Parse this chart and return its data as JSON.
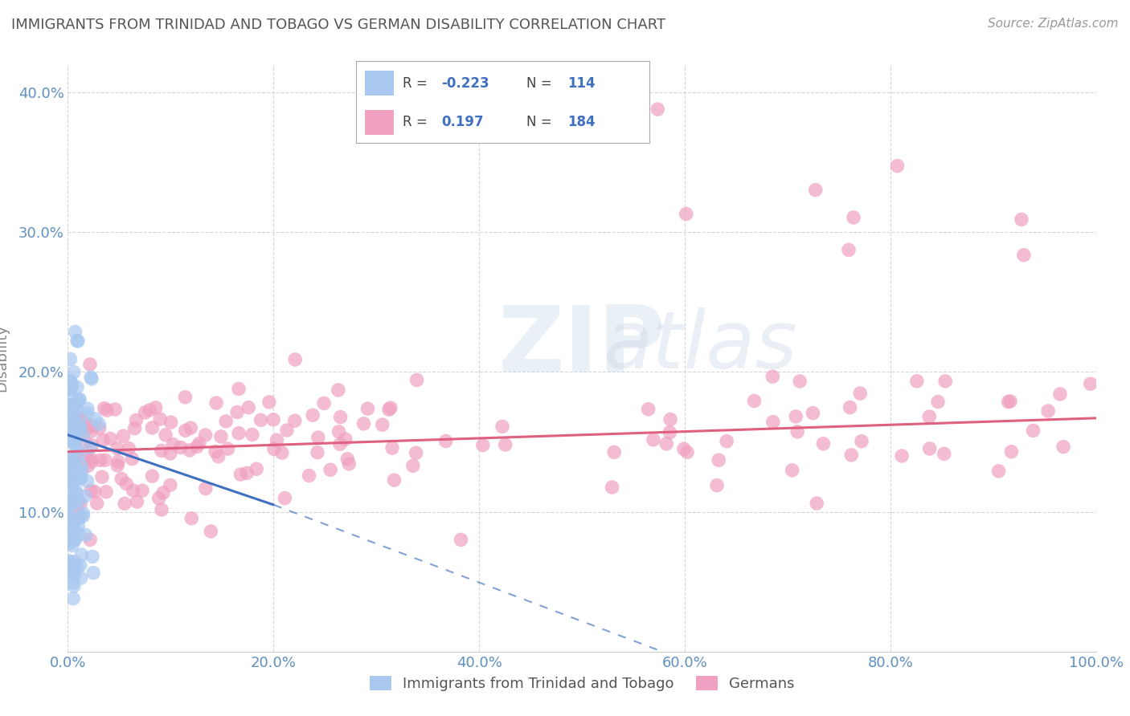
{
  "title": "IMMIGRANTS FROM TRINIDAD AND TOBAGO VS GERMAN DISABILITY CORRELATION CHART",
  "source": "Source: ZipAtlas.com",
  "ylabel": "Disability",
  "xlim": [
    0,
    1.0
  ],
  "ylim": [
    0,
    0.42
  ],
  "xticks": [
    0.0,
    0.2,
    0.4,
    0.6,
    0.8,
    1.0
  ],
  "xtick_labels": [
    "0.0%",
    "20.0%",
    "40.0%",
    "60.0%",
    "80.0%",
    "100.0%"
  ],
  "yticks": [
    0.0,
    0.1,
    0.2,
    0.3,
    0.4
  ],
  "ytick_labels": [
    "",
    "10.0%",
    "20.0%",
    "30.0%",
    "40.0%"
  ],
  "blue_R": -0.223,
  "blue_N": 114,
  "pink_R": 0.197,
  "pink_N": 184,
  "blue_color": "#a8c8f0",
  "pink_color": "#f0a0c0",
  "blue_line_color": "#4070c0",
  "pink_line_color": "#e06080",
  "legend_label_blue": "Immigrants from Trinidad and Tobago",
  "legend_label_pink": "Germans",
  "background_color": "#ffffff",
  "grid_color": "#cccccc",
  "title_color": "#555555",
  "axis_label_color": "#888888",
  "tick_color": "#6090c0"
}
